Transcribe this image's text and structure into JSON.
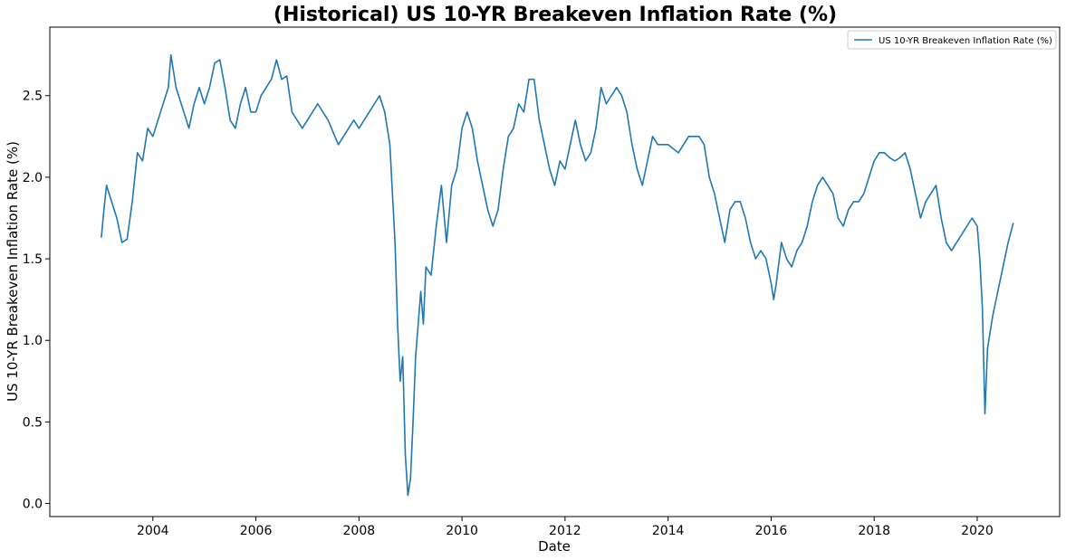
{
  "chart_data": {
    "type": "line",
    "title": "(Historical) US 10-YR Breakeven Inflation Rate (%)",
    "xlabel": "Date",
    "ylabel": "US 10-YR Breakeven Inflation Rate (%)",
    "xlim": [
      2002.0,
      2021.6
    ],
    "ylim": [
      -0.08,
      2.92
    ],
    "xticks": [
      2004,
      2006,
      2008,
      2010,
      2012,
      2014,
      2016,
      2018,
      2020
    ],
    "xtick_labels": [
      "2004",
      "2006",
      "2008",
      "2010",
      "2012",
      "2014",
      "2016",
      "2018",
      "2020"
    ],
    "yticks": [
      0.0,
      0.5,
      1.0,
      1.5,
      2.0,
      2.5
    ],
    "ytick_labels": [
      "0.0",
      "0.5",
      "1.0",
      "1.5",
      "2.0",
      "2.5"
    ],
    "grid": false,
    "legend_position": "top-right",
    "series": [
      {
        "name": "US 10-YR Breakeven Inflation Rate (%)",
        "color": "#1f77b4",
        "x": [
          2003.0,
          2003.05,
          2003.1,
          2003.2,
          2003.3,
          2003.4,
          2003.5,
          2003.6,
          2003.7,
          2003.8,
          2003.9,
          2004.0,
          2004.1,
          2004.2,
          2004.3,
          2004.35,
          2004.45,
          2004.6,
          2004.7,
          2004.8,
          2004.9,
          2005.0,
          2005.1,
          2005.2,
          2005.3,
          2005.4,
          2005.5,
          2005.6,
          2005.7,
          2005.8,
          2005.9,
          2006.0,
          2006.1,
          2006.2,
          2006.3,
          2006.4,
          2006.5,
          2006.6,
          2006.7,
          2006.8,
          2006.9,
          2007.0,
          2007.2,
          2007.4,
          2007.6,
          2007.8,
          2007.9,
          2008.0,
          2008.2,
          2008.3,
          2008.4,
          2008.5,
          2008.55,
          2008.6,
          2008.65,
          2008.7,
          2008.75,
          2008.8,
          2008.85,
          2008.9,
          2008.95,
          2009.0,
          2009.05,
          2009.1,
          2009.2,
          2009.25,
          2009.3,
          2009.4,
          2009.5,
          2009.6,
          2009.7,
          2009.8,
          2009.9,
          2010.0,
          2010.1,
          2010.2,
          2010.3,
          2010.4,
          2010.5,
          2010.6,
          2010.7,
          2010.8,
          2010.9,
          2011.0,
          2011.1,
          2011.2,
          2011.3,
          2011.4,
          2011.5,
          2011.6,
          2011.7,
          2011.8,
          2011.9,
          2012.0,
          2012.1,
          2012.2,
          2012.3,
          2012.4,
          2012.5,
          2012.6,
          2012.7,
          2012.8,
          2012.9,
          2013.0,
          2013.1,
          2013.2,
          2013.3,
          2013.4,
          2013.5,
          2013.6,
          2013.7,
          2013.8,
          2014.0,
          2014.2,
          2014.4,
          2014.6,
          2014.7,
          2014.8,
          2014.9,
          2015.0,
          2015.1,
          2015.2,
          2015.3,
          2015.4,
          2015.5,
          2015.6,
          2015.7,
          2015.8,
          2015.9,
          2016.0,
          2016.05,
          2016.1,
          2016.2,
          2016.3,
          2016.4,
          2016.5,
          2016.6,
          2016.7,
          2016.8,
          2016.9,
          2017.0,
          2017.1,
          2017.2,
          2017.3,
          2017.4,
          2017.5,
          2017.6,
          2017.7,
          2017.8,
          2017.9,
          2018.0,
          2018.1,
          2018.2,
          2018.3,
          2018.4,
          2018.5,
          2018.6,
          2018.7,
          2018.8,
          2018.9,
          2019.0,
          2019.1,
          2019.2,
          2019.3,
          2019.4,
          2019.5,
          2019.6,
          2019.7,
          2019.8,
          2019.9,
          2020.0,
          2020.05,
          2020.1,
          2020.15,
          2020.2,
          2020.25,
          2020.3,
          2020.4,
          2020.5,
          2020.6,
          2020.7
        ],
        "values": [
          1.63,
          1.8,
          1.95,
          1.85,
          1.75,
          1.6,
          1.62,
          1.85,
          2.15,
          2.1,
          2.3,
          2.25,
          2.35,
          2.45,
          2.55,
          2.75,
          2.55,
          2.4,
          2.3,
          2.45,
          2.55,
          2.45,
          2.55,
          2.7,
          2.72,
          2.55,
          2.35,
          2.3,
          2.45,
          2.55,
          2.4,
          2.4,
          2.5,
          2.55,
          2.6,
          2.72,
          2.6,
          2.62,
          2.4,
          2.35,
          2.3,
          2.35,
          2.45,
          2.35,
          2.2,
          2.3,
          2.35,
          2.3,
          2.4,
          2.45,
          2.5,
          2.4,
          2.3,
          2.2,
          1.9,
          1.6,
          1.1,
          0.75,
          0.9,
          0.3,
          0.05,
          0.15,
          0.5,
          0.9,
          1.3,
          1.1,
          1.45,
          1.4,
          1.7,
          1.95,
          1.6,
          1.95,
          2.05,
          2.3,
          2.4,
          2.3,
          2.1,
          1.95,
          1.8,
          1.7,
          1.8,
          2.05,
          2.25,
          2.3,
          2.45,
          2.4,
          2.6,
          2.6,
          2.35,
          2.2,
          2.05,
          1.95,
          2.1,
          2.05,
          2.2,
          2.35,
          2.2,
          2.1,
          2.15,
          2.3,
          2.55,
          2.45,
          2.5,
          2.55,
          2.5,
          2.4,
          2.2,
          2.05,
          1.95,
          2.1,
          2.25,
          2.2,
          2.2,
          2.15,
          2.25,
          2.25,
          2.2,
          2.0,
          1.9,
          1.75,
          1.6,
          1.8,
          1.85,
          1.85,
          1.75,
          1.6,
          1.5,
          1.55,
          1.5,
          1.35,
          1.25,
          1.35,
          1.6,
          1.5,
          1.45,
          1.55,
          1.6,
          1.7,
          1.85,
          1.95,
          2.0,
          1.95,
          1.9,
          1.75,
          1.7,
          1.8,
          1.85,
          1.85,
          1.9,
          2.0,
          2.1,
          2.15,
          2.15,
          2.12,
          2.1,
          2.12,
          2.15,
          2.05,
          1.9,
          1.75,
          1.85,
          1.9,
          1.95,
          1.75,
          1.6,
          1.55,
          1.6,
          1.65,
          1.7,
          1.75,
          1.7,
          1.5,
          1.2,
          0.55,
          0.95,
          1.05,
          1.15,
          1.3,
          1.45,
          1.6,
          1.72
        ]
      }
    ]
  }
}
